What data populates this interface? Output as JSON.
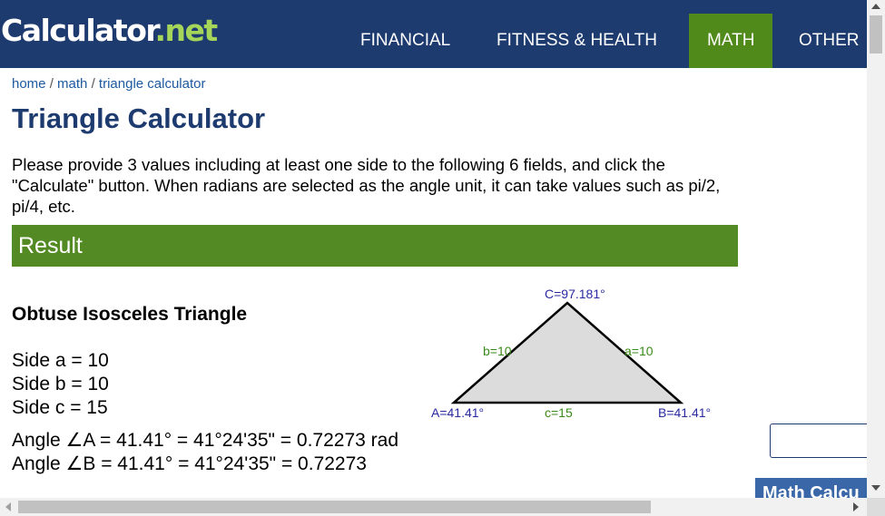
{
  "header": {
    "logo_main": "Calculator",
    "logo_dot": ".",
    "logo_net": "net",
    "nav": [
      {
        "label": "FINANCIAL"
      },
      {
        "label": "FITNESS & HEALTH"
      },
      {
        "label": "MATH",
        "active": true
      },
      {
        "label": "OTHER"
      }
    ]
  },
  "breadcrumb": {
    "items": [
      "home",
      "math",
      "triangle calculator"
    ],
    "separator": "/"
  },
  "page_title": "Triangle Calculator",
  "intro": "Please provide 3 values including at least one side to the following 6 fields, and click the \"Calculate\" button. When radians are selected as the angle unit, it can take values such as pi/2, pi/4, etc.",
  "result": {
    "header": "Result",
    "triangle_type": "Obtuse Isosceles Triangle",
    "sides": [
      "Side a = 10",
      "Side b = 10",
      "Side c = 15"
    ],
    "angles": [
      "Angle ∠A = 41.41° = 41°24'35\" = 0.72273 rad",
      "Angle ∠B = 41.41° = 41°24'35\" = 0.72273"
    ]
  },
  "diagram": {
    "angle_C": "C=97.181°",
    "angle_A": "A=41.41°",
    "angle_B": "B=41.41°",
    "side_a": "a=10",
    "side_b": "b=10",
    "side_c": "c=15"
  },
  "sidebar": {
    "box_title": "Math Calcu"
  },
  "colors": {
    "header_bg": "#1e3b70",
    "nav_active": "#4f8a1a",
    "result_bar": "#538a23",
    "logo_accent": "#a5d65a",
    "link": "#1e5aa0",
    "diagram_angle": "#2a2aa0",
    "diagram_side": "#3a8a1a"
  }
}
